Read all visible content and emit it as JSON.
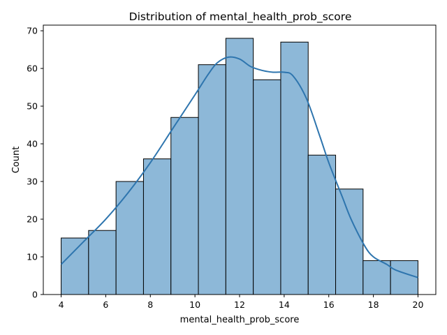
{
  "chart_data": {
    "type": "bar",
    "title": "Distribution of mental_health_prob_score",
    "xlabel": "mental_health_prob_score",
    "ylabel": "Count",
    "xlim": [
      3.2,
      20.8
    ],
    "ylim": [
      0,
      71.5
    ],
    "xticks": [
      4,
      6,
      8,
      10,
      12,
      14,
      16,
      18,
      20
    ],
    "yticks": [
      0,
      10,
      20,
      30,
      40,
      50,
      60,
      70
    ],
    "bin_edges": [
      4,
      5.2308,
      6.4615,
      7.6923,
      8.9231,
      10.1538,
      11.3846,
      12.6154,
      13.8462,
      15.0769,
      16.3077,
      17.5385,
      18.7692,
      20
    ],
    "values": [
      15,
      17,
      30,
      36,
      47,
      61,
      68,
      57,
      67,
      37,
      28,
      9,
      9
    ],
    "kde": {
      "x": [
        4,
        5,
        6,
        7,
        8,
        9,
        10,
        10.6,
        11,
        11.5,
        12,
        12.5,
        13,
        13.5,
        14,
        14.4,
        15,
        15.6,
        16,
        16.6,
        17,
        17.6,
        18,
        18.6,
        19,
        20
      ],
      "y": [
        8,
        14,
        20,
        27,
        35,
        44,
        53,
        58.5,
        61.5,
        63,
        62.5,
        60.5,
        59.5,
        59,
        59,
        58,
        52,
        42,
        35,
        26,
        20,
        13,
        10,
        8,
        6.5,
        4.5
      ]
    },
    "grid": false,
    "colors": {
      "bar_fill": "#8DB8D8",
      "bar_edge": "#000000",
      "kde_line": "#2E75AE",
      "axes": "#000000"
    }
  }
}
